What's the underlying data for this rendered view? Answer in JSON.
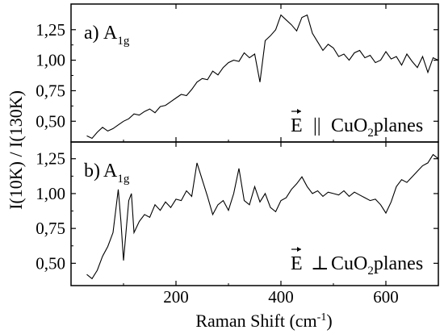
{
  "chart_data": [
    {
      "type": "line",
      "panel_label": "a)",
      "symbol": {
        "main": "A",
        "sub": "1g"
      },
      "annotation": {
        "vector": "E",
        "relation": "||",
        "chem": "CuO",
        "chem_sub": "2",
        "rest": "planes"
      },
      "xlim": [
        0,
        700
      ],
      "ylim": [
        0.33,
        1.46
      ],
      "yticks": [
        "0,50",
        "0,75",
        "1,00",
        "1,25"
      ],
      "ytick_values": [
        0.5,
        0.75,
        1.0,
        1.25
      ],
      "series": [
        {
          "x": [
            30,
            40,
            50,
            60,
            70,
            80,
            90,
            100,
            110,
            120,
            130,
            140,
            150,
            160,
            170,
            180,
            190,
            200,
            210,
            220,
            230,
            240,
            250,
            260,
            270,
            280,
            290,
            300,
            310,
            320,
            330,
            340,
            350,
            360,
            370,
            380,
            390,
            400,
            410,
            420,
            430,
            440,
            450,
            460,
            470,
            480,
            490,
            500,
            510,
            520,
            530,
            540,
            550,
            560,
            570,
            580,
            590,
            600,
            610,
            620,
            630,
            640,
            650,
            660,
            670,
            680,
            690,
            700
          ],
          "y": [
            0.38,
            0.36,
            0.41,
            0.45,
            0.42,
            0.44,
            0.47,
            0.5,
            0.52,
            0.56,
            0.55,
            0.58,
            0.6,
            0.57,
            0.62,
            0.63,
            0.66,
            0.69,
            0.72,
            0.71,
            0.76,
            0.82,
            0.85,
            0.84,
            0.91,
            0.88,
            0.94,
            0.98,
            1.0,
            0.99,
            1.06,
            1.02,
            1.05,
            0.82,
            1.16,
            1.2,
            1.25,
            1.37,
            1.33,
            1.29,
            1.24,
            1.35,
            1.37,
            1.22,
            1.15,
            1.08,
            1.13,
            1.1,
            1.03,
            1.05,
            1.0,
            1.06,
            1.08,
            1.02,
            1.04,
            0.98,
            1.0,
            1.07,
            1.01,
            1.03,
            0.96,
            1.05,
            0.99,
            0.94,
            1.03,
            0.9,
            1.02,
            1.0
          ]
        }
      ]
    },
    {
      "type": "line",
      "panel_label": "b)",
      "symbol": {
        "main": "A",
        "sub": "1g"
      },
      "annotation": {
        "vector": "E",
        "relation": "⊥",
        "chem": "CuO",
        "chem_sub": "2",
        "rest": "planes"
      },
      "xlim": [
        0,
        700
      ],
      "ylim": [
        0.34,
        1.37
      ],
      "yticks": [
        "0,50",
        "0,75",
        "1,00",
        "1,25"
      ],
      "ytick_values": [
        0.5,
        0.75,
        1.0,
        1.25
      ],
      "series": [
        {
          "x": [
            30,
            40,
            50,
            60,
            70,
            80,
            90,
            95,
            100,
            110,
            115,
            120,
            130,
            140,
            150,
            160,
            170,
            180,
            190,
            200,
            210,
            220,
            230,
            240,
            250,
            260,
            270,
            280,
            290,
            300,
            310,
            320,
            330,
            340,
            350,
            360,
            370,
            380,
            390,
            400,
            410,
            420,
            430,
            440,
            450,
            460,
            470,
            480,
            490,
            500,
            510,
            520,
            530,
            540,
            550,
            560,
            570,
            580,
            590,
            600,
            610,
            620,
            630,
            640,
            650,
            660,
            670,
            680,
            690,
            700
          ],
          "y": [
            0.42,
            0.39,
            0.45,
            0.55,
            0.62,
            0.72,
            1.03,
            0.8,
            0.52,
            0.95,
            1.0,
            0.72,
            0.8,
            0.85,
            0.83,
            0.92,
            0.88,
            0.94,
            0.9,
            0.96,
            0.95,
            1.02,
            0.98,
            1.22,
            1.1,
            0.98,
            0.85,
            0.92,
            0.95,
            0.88,
            1.0,
            1.18,
            0.95,
            0.92,
            1.05,
            0.94,
            1.0,
            0.9,
            0.87,
            0.95,
            0.97,
            1.03,
            1.07,
            1.12,
            1.05,
            1.0,
            1.02,
            0.98,
            1.01,
            1.0,
            0.99,
            1.02,
            0.98,
            1.01,
            0.99,
            0.97,
            0.95,
            0.96,
            0.92,
            0.86,
            0.94,
            1.05,
            1.1,
            1.08,
            1.12,
            1.16,
            1.2,
            1.22,
            1.28,
            1.25
          ]
        }
      ]
    }
  ],
  "xaxis": {
    "ticks": [
      "200",
      "400",
      "600"
    ],
    "tick_values": [
      200,
      400,
      600
    ],
    "label_main": "Raman Shift (cm",
    "label_sup": "-1",
    "label_end": ")"
  },
  "ylabel": "I(10K) / I(130K)"
}
